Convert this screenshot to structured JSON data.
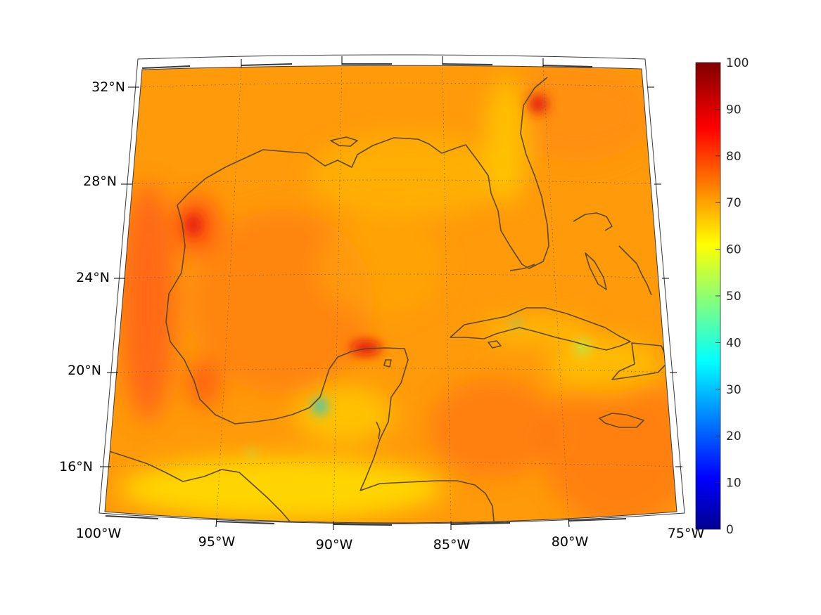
{
  "map": {
    "longitude_labels": [
      "100°W",
      "95°W",
      "90°W",
      "85°W",
      "80°W",
      "75°W"
    ],
    "latitude_labels": [
      "32°N",
      "28°N",
      "24°N",
      "20°N",
      "16°N"
    ],
    "extent": {
      "lon_min": -100,
      "lon_max": -75,
      "lat_min": 14,
      "lat_max": 33
    },
    "graticule": "dotted",
    "coastline_color": "#5a4a1e"
  },
  "colorbar": {
    "ticks": [
      "100",
      "90",
      "80",
      "70",
      "60",
      "50",
      "40",
      "30",
      "20",
      "10",
      "0"
    ],
    "range": [
      0,
      100
    ],
    "colormap": "jet"
  },
  "field": {
    "dominant_range": [
      60,
      90
    ],
    "background_color": "#ff9a0a"
  }
}
